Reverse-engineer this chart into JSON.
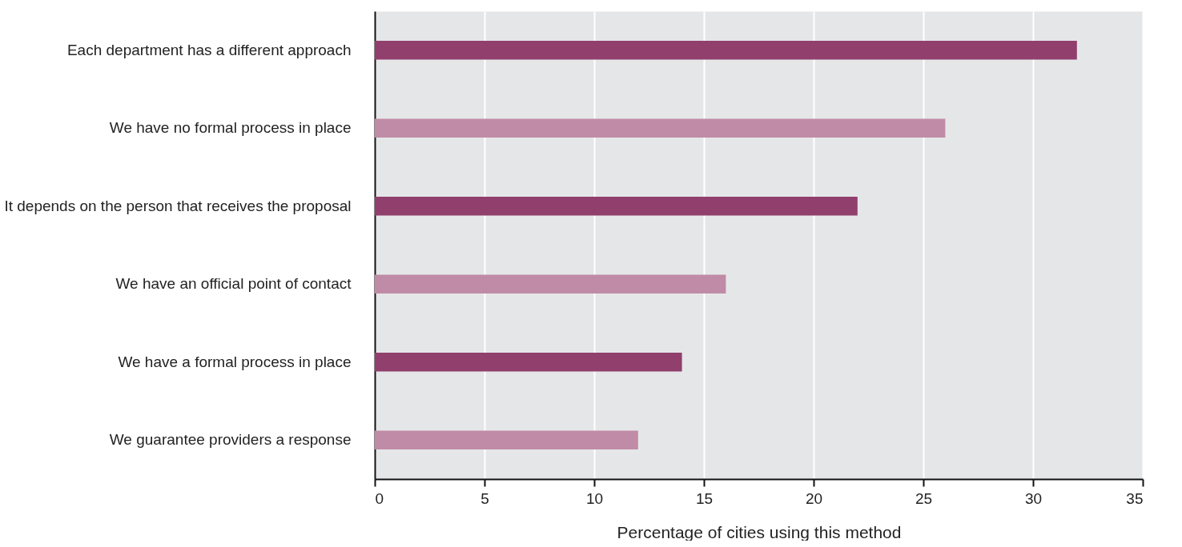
{
  "chart_data": {
    "type": "bar",
    "orientation": "horizontal",
    "categories": [
      "Each department has a different approach",
      "We have no formal process in place",
      "It depends on the person that receives the proposal",
      "We have an official point of contact",
      "We have a formal process in place",
      "We guarantee providers a response"
    ],
    "values": [
      32,
      26,
      22,
      16,
      14,
      12
    ],
    "colors": [
      "#913f6c",
      "#c08ba6",
      "#913f6c",
      "#c08ba6",
      "#913f6c",
      "#c08ba6"
    ],
    "xlabel": "Percentage of cities using this method",
    "xlim": [
      0,
      35
    ],
    "xticks": [
      0,
      5,
      10,
      15,
      20,
      25,
      30,
      35
    ],
    "grid": "x"
  }
}
